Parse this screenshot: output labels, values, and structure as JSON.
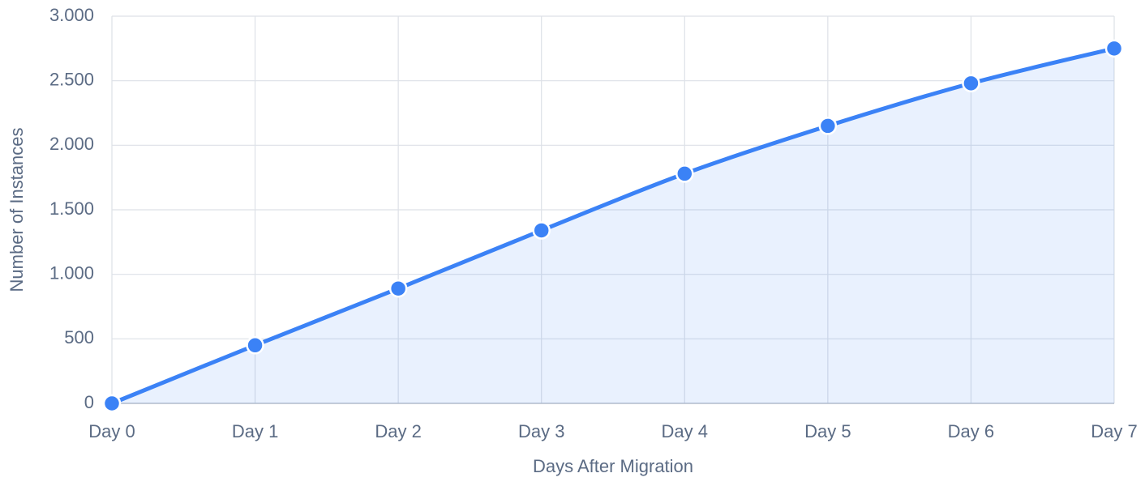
{
  "chart_data": {
    "type": "line",
    "x_label": "Days After Migration",
    "y_label": "Number of Instances",
    "categories": [
      "Day 0",
      "Day 1",
      "Day 2",
      "Day 3",
      "Day 4",
      "Day 5",
      "Day 6",
      "Day 7"
    ],
    "values": [
      0,
      450,
      890,
      1340,
      1780,
      2150,
      2480,
      2750
    ],
    "color": "#3b82f6",
    "area": true,
    "ylim": [
      0,
      3000
    ],
    "yticks": [
      0,
      500,
      {
        "value": 1000,
        "label": "1.000"
      },
      {
        "value": 1500,
        "label": "1.500"
      },
      {
        "value": 2000,
        "label": "2.000"
      },
      {
        "value": 2500,
        "label": "2.500"
      },
      {
        "value": 3000,
        "label": "3.000"
      }
    ],
    "grid": true
  }
}
